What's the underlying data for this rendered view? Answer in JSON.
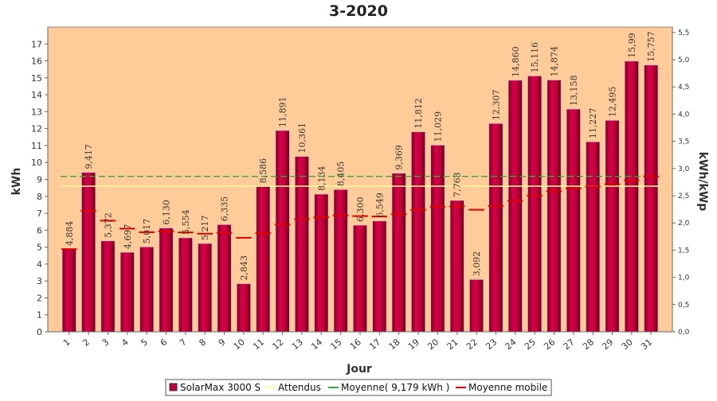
{
  "chart_data": {
    "type": "bar",
    "title": "3-2020",
    "xlabel": "Jour",
    "ylabel": "kWh",
    "y2label": "kWh/kWp",
    "categories": [
      "1",
      "2",
      "3",
      "4",
      "5",
      "6",
      "7",
      "8",
      "9",
      "10",
      "11",
      "12",
      "13",
      "14",
      "15",
      "16",
      "17",
      "18",
      "19",
      "20",
      "21",
      "22",
      "23",
      "24",
      "25",
      "26",
      "27",
      "28",
      "29",
      "30",
      "31"
    ],
    "value_labels": [
      "4,884",
      "9,417",
      "5,372",
      "4,697",
      "5,017",
      "6,130",
      "5,554",
      "5,217",
      "6,335",
      "2,843",
      "8,586",
      "11,891",
      "10,361",
      "8,134",
      "8,405",
      "6,300",
      "6,549",
      "9,369",
      "11,812",
      "11,029",
      "7,763",
      "3,092",
      "12,307",
      "14,860",
      "15,116",
      "14,874",
      "13,158",
      "11,227",
      "12,495",
      "15,99",
      "15,757"
    ],
    "ylim": [
      0,
      18
    ],
    "yticks": [
      0,
      1,
      2,
      3,
      4,
      5,
      6,
      7,
      8,
      9,
      10,
      11,
      12,
      13,
      14,
      15,
      16,
      17
    ],
    "y2lim": [
      0,
      5.6
    ],
    "y2ticks": [
      "0,0",
      "0,5",
      "1,0",
      "1,5",
      "2,0",
      "2,5",
      "3,0",
      "3,5",
      "4,0",
      "4,5",
      "5,0",
      "5,5"
    ],
    "series": [
      {
        "name": "SolarMax 3000 S",
        "color": "#c0003a",
        "values": [
          4.884,
          9.417,
          5.372,
          4.697,
          5.017,
          6.13,
          5.554,
          5.217,
          6.335,
          2.843,
          8.586,
          11.891,
          10.361,
          8.134,
          8.405,
          6.3,
          6.549,
          9.369,
          11.812,
          11.029,
          7.763,
          3.092,
          12.307,
          14.86,
          15.116,
          14.874,
          13.158,
          11.227,
          12.495,
          15.99,
          15.757
        ]
      },
      {
        "name": "Attendus",
        "color": "#ffff99",
        "value": 8.6
      },
      {
        "name": "Moyenne( 9,179 kWh )",
        "color": "#33aa33",
        "value": 9.179
      },
      {
        "name": "Moyenne mobile",
        "color": "#dd0000",
        "values": [
          4.884,
          7.15,
          6.56,
          6.09,
          5.88,
          5.92,
          5.87,
          5.79,
          5.85,
          5.55,
          5.83,
          6.34,
          6.65,
          6.76,
          6.87,
          6.83,
          6.81,
          6.95,
          7.2,
          7.39,
          7.41,
          7.21,
          7.43,
          7.74,
          8.04,
          8.3,
          8.48,
          8.58,
          8.71,
          8.95,
          9.179
        ]
      }
    ],
    "legend_position": "bottom",
    "plot_background": "#ffcc99",
    "grid": false
  }
}
